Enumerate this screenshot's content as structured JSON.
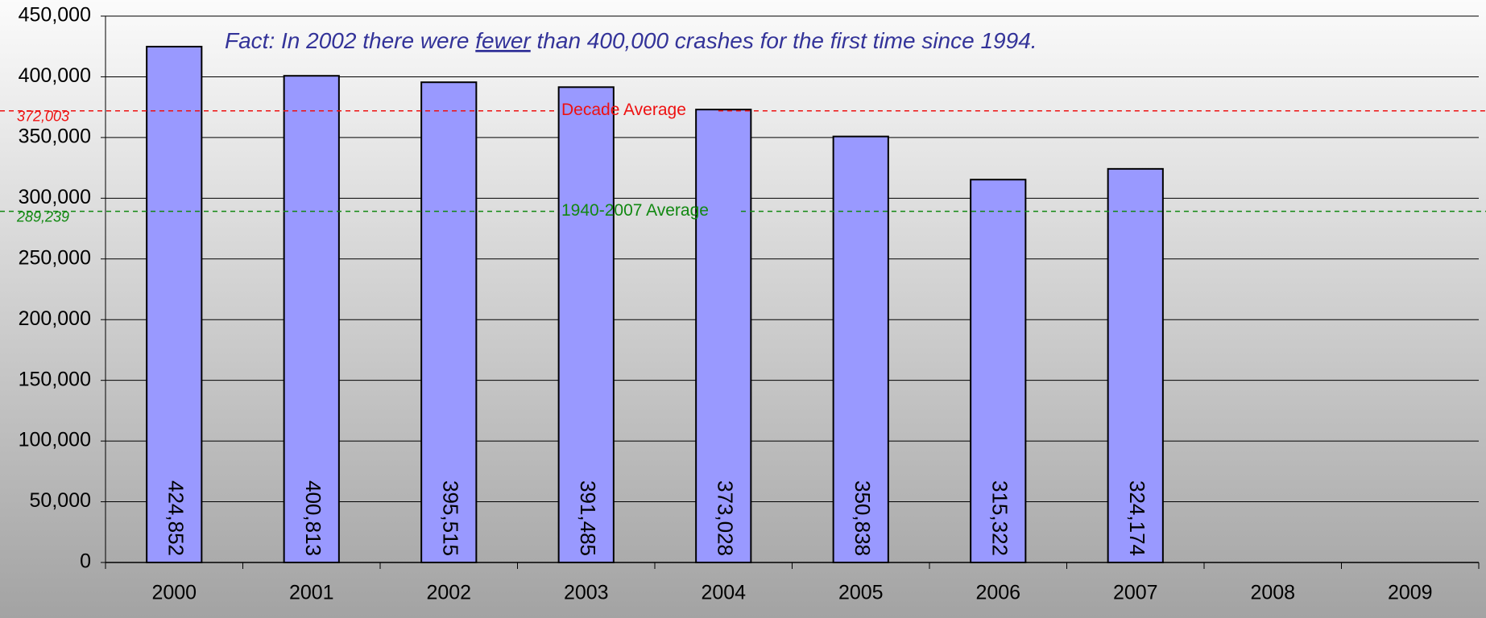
{
  "chart_data": {
    "type": "bar",
    "annotation": {
      "before": "Fact: In 2002 there were ",
      "emphasis": "fewer",
      "after": " than 400,000 crashes for the first time since 1994."
    },
    "categories": [
      "2000",
      "2001",
      "2002",
      "2003",
      "2004",
      "2005",
      "2006",
      "2007",
      "2008",
      "2009"
    ],
    "values": [
      424852,
      400813,
      395515,
      391485,
      373028,
      350838,
      315322,
      324174,
      null,
      null
    ],
    "value_labels": [
      "424,852",
      "400,813",
      "395,515",
      "391,485",
      "373,028",
      "350,838",
      "315,322",
      "324,174",
      null,
      null
    ],
    "color": "#9999ff",
    "ylim": [
      0,
      450000
    ],
    "yticks": [
      0,
      {
        "value": 50000,
        "label": "50,000"
      },
      {
        "value": 100000,
        "label": "100,000"
      },
      {
        "value": 150000,
        "label": "150,000"
      },
      {
        "value": 200000,
        "label": "200,000"
      },
      {
        "value": 250000,
        "label": "250,000"
      },
      {
        "value": 300000,
        "label": "300,000"
      },
      {
        "value": 350000,
        "label": "350,000"
      },
      {
        "value": 400000,
        "label": "400,000"
      },
      {
        "value": 450000,
        "label": "450,000"
      }
    ],
    "grid": true,
    "reference_lines": [
      {
        "label": "Decade Average",
        "value": 372003,
        "value_label": "372,003",
        "color": "#ee1111"
      },
      {
        "label": "1940-2007 Average",
        "value": 289239,
        "value_label": "289,239",
        "color": "#118811"
      }
    ]
  }
}
